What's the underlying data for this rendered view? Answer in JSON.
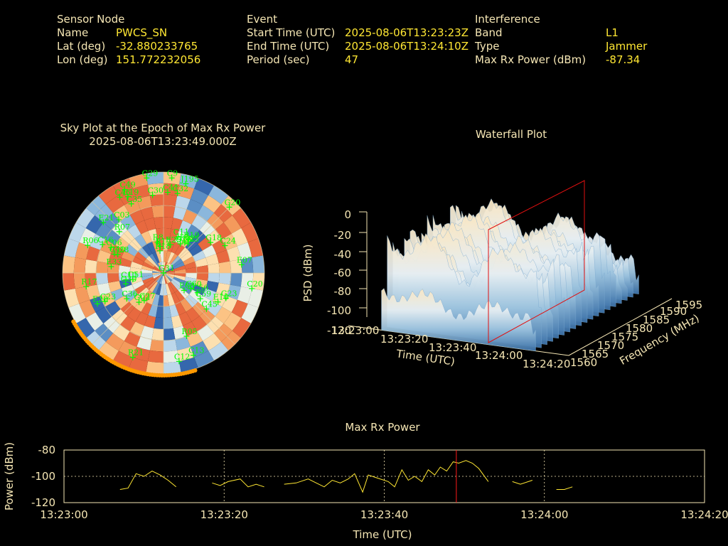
{
  "header": {
    "sensor": {
      "title": "Sensor Node",
      "name_label": "Name",
      "name": "PWCS_SN",
      "lat_label": "Lat (deg)",
      "lat": "-32.880233765",
      "lon_label": "Lon (deg)",
      "lon": "151.772232056"
    },
    "event": {
      "title": "Event",
      "start_label": "Start Time (UTC)",
      "start": "2025-08-06T13:23:23Z",
      "end_label": "End Time (UTC)",
      "end": "2025-08-06T13:24:10Z",
      "period_label": "Period (sec)",
      "period": "47"
    },
    "interference": {
      "title": "Interference",
      "band_label": "Band",
      "band": "L1",
      "type_label": "Type",
      "type": "Jammer",
      "power_label": "Max Rx Power (dBm)",
      "power": "-87.34"
    }
  },
  "skyplot": {
    "title": "Sky Plot at the Epoch of Max Rx Power",
    "subtitle": "2025-08-06T13:23:49.000Z",
    "satellites": [
      {
        "id": "G31",
        "az": 0,
        "el": 90
      },
      {
        "id": "R18",
        "az": -9,
        "el": 70
      },
      {
        "id": "R17",
        "az": -7,
        "el": 66
      },
      {
        "id": "R8",
        "az": -11,
        "el": 62
      },
      {
        "id": "E29",
        "az": 14,
        "el": 64
      },
      {
        "id": "G26",
        "az": 30,
        "el": 60
      },
      {
        "id": "E02",
        "az": 35,
        "el": 57
      },
      {
        "id": "C25",
        "az": 40,
        "el": 56
      },
      {
        "id": "R19",
        "az": 37,
        "el": 53
      },
      {
        "id": "C11",
        "az": 22,
        "el": 55
      },
      {
        "id": "G18",
        "az": 57,
        "el": 40
      },
      {
        "id": "C24",
        "az": 66,
        "el": 30
      },
      {
        "id": "R07",
        "az": -47,
        "el": 36
      },
      {
        "id": "C03",
        "az": -40,
        "el": 28
      },
      {
        "id": "C35",
        "az": -25,
        "el": 22
      },
      {
        "id": "C30",
        "az": -8,
        "el": 20
      },
      {
        "id": "C41",
        "az": 3,
        "el": 18
      },
      {
        "id": "C32",
        "az": 10,
        "el": 18
      },
      {
        "id": "C19",
        "az": -25,
        "el": 15
      },
      {
        "id": "C46",
        "az": -30,
        "el": 12
      },
      {
        "id": "J195",
        "az": 14,
        "el": 8
      },
      {
        "id": "G20",
        "az": 45,
        "el": 7
      },
      {
        "id": "G28",
        "az": -68,
        "el": 46
      },
      {
        "id": "C40",
        "az": -69,
        "el": 43
      },
      {
        "id": "C06",
        "az": -64,
        "el": 38
      },
      {
        "id": "C16",
        "az": -65,
        "el": 30
      },
      {
        "id": "E21",
        "az": -50,
        "el": 20
      },
      {
        "id": "C49",
        "az": -25,
        "el": 8
      },
      {
        "id": "G29",
        "az": -10,
        "el": 4
      },
      {
        "id": "C9",
        "az": 5,
        "el": 5
      },
      {
        "id": "R06",
        "az": -70,
        "el": 18
      },
      {
        "id": "E33",
        "az": -83,
        "el": 43
      },
      {
        "id": "R17",
        "az": -100,
        "el": 20
      },
      {
        "id": "C51",
        "az": -102,
        "el": 62
      },
      {
        "id": "C10",
        "az": -100,
        "el": 56
      },
      {
        "id": "C30",
        "az": -106,
        "el": 55
      },
      {
        "id": "C23",
        "az": -116,
        "el": 32
      },
      {
        "id": "E28",
        "az": -115,
        "el": 25
      },
      {
        "id": "R21",
        "az": -160,
        "el": 10
      },
      {
        "id": "C36",
        "az": -125,
        "el": 50
      },
      {
        "id": "G02",
        "az": -140,
        "el": 56
      },
      {
        "id": "C27",
        "az": -145,
        "el": 60
      },
      {
        "id": "E07",
        "az": 84,
        "el": 20
      },
      {
        "id": "C20",
        "az": 100,
        "el": 10
      },
      {
        "id": "G23",
        "az": 112,
        "el": 30
      },
      {
        "id": "E10",
        "az": 118,
        "el": 35
      },
      {
        "id": "C12",
        "az": 170,
        "el": 10
      },
      {
        "id": "C13",
        "az": 160,
        "el": 12
      },
      {
        "id": "R05",
        "az": 160,
        "el": 30
      },
      {
        "id": "C45",
        "az": 130,
        "el": 40
      },
      {
        "id": "C56",
        "az": 120,
        "el": 55
      },
      {
        "id": "C59",
        "az": 125,
        "el": 50
      },
      {
        "id": "C60",
        "az": 120,
        "el": 62
      },
      {
        "id": "E08",
        "az": 130,
        "el": 66
      }
    ]
  },
  "waterfall": {
    "title": "Waterfall Plot",
    "zlabel": "PSD (dBm)",
    "zticks": [
      "0",
      "-20",
      "-40",
      "-60",
      "-80",
      "-100",
      "-120"
    ],
    "xlabel": "Time (UTC)",
    "xticks": [
      "13:23:00",
      "13:23:20",
      "13:23:40",
      "13:24:00",
      "13:24:20"
    ],
    "ylabel": "Frequency (MHz)",
    "yticks": [
      "1560",
      "1565",
      "1570",
      "1575",
      "1580",
      "1585",
      "1590",
      "1595"
    ],
    "cut_time": "13:23:49"
  },
  "chart_data": {
    "type": "line",
    "title": "Max Rx Power",
    "xlabel": "Time (UTC)",
    "ylabel": "Power (dBm)",
    "xlim": [
      0,
      80
    ],
    "ylim": [
      -120,
      -80
    ],
    "x_tick_labels": [
      "13:23:00",
      "13:23:20",
      "13:23:40",
      "13:24:00",
      "13:24:20"
    ],
    "y_tick_labels": [
      "-80",
      "-100",
      "-120"
    ],
    "grid": true,
    "marker_time": 49,
    "series": [
      {
        "segments": [
          [
            [
              7,
              -110
            ],
            [
              8,
              -109
            ],
            [
              9,
              -98
            ],
            [
              10,
              -100
            ],
            [
              11,
              -96
            ],
            [
              12,
              -99
            ],
            [
              13,
              -103
            ],
            [
              14,
              -108
            ]
          ],
          [
            [
              18.5,
              -105
            ],
            [
              19.5,
              -107
            ],
            [
              20.5,
              -104
            ],
            [
              22,
              -102
            ],
            [
              23,
              -108
            ],
            [
              24,
              -106
            ],
            [
              25,
              -108
            ]
          ],
          [
            [
              27.5,
              -106
            ],
            [
              29,
              -105
            ],
            [
              30.5,
              -102
            ],
            [
              31.5,
              -105
            ],
            [
              32.5,
              -108
            ],
            [
              33.5,
              -103
            ],
            [
              34.5,
              -105
            ],
            [
              35.5,
              -102
            ],
            [
              36.3,
              -98
            ],
            [
              37.3,
              -112
            ],
            [
              38,
              -99
            ],
            [
              39,
              -101
            ],
            [
              40.5,
              -104
            ],
            [
              41.3,
              -108
            ],
            [
              42.2,
              -95
            ],
            [
              43,
              -103
            ],
            [
              43.8,
              -100
            ],
            [
              44.7,
              -104
            ],
            [
              45.5,
              -95
            ],
            [
              46.3,
              -99
            ],
            [
              47,
              -93
            ],
            [
              47.8,
              -96
            ],
            [
              48.6,
              -89
            ],
            [
              49.3,
              -90
            ],
            [
              50.2,
              -88
            ],
            [
              51,
              -90
            ],
            [
              51.8,
              -94
            ],
            [
              53,
              -104
            ]
          ],
          [
            [
              56,
              -104
            ],
            [
              57,
              -106
            ],
            [
              58.5,
              -103
            ]
          ],
          [
            [
              61.5,
              -110
            ],
            [
              62.5,
              -110
            ],
            [
              63.5,
              -108
            ]
          ]
        ]
      }
    ]
  }
}
